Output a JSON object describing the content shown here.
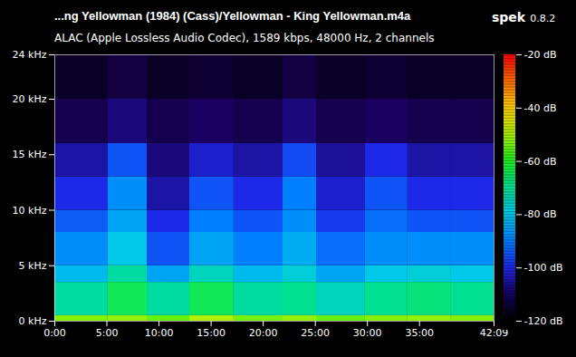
{
  "chart_data": {
    "type": "heatmap",
    "title": "...ng Yellowman (1984) (Cass)/Yellowman - King Yellowman.m4a",
    "subtitle": "ALAC (Apple Lossless Audio Codec), 1589 kbps, 48000 Hz, 2 channels",
    "annotations": [
      "spek",
      "0.8.2"
    ],
    "x": [
      0,
      307,
      532,
      777,
      1032,
      1314,
      1507,
      1788,
      2033,
      2279,
      2529
    ],
    "y": [
      0,
      0.5,
      3.5,
      5,
      8,
      10,
      13,
      16,
      20,
      24
    ],
    "values": [
      [
        -53,
        -72,
        -82,
        -88,
        -94,
        -100,
        -105,
        -112,
        -116
      ],
      [
        -52,
        -65,
        -72,
        -80,
        -85,
        -88,
        -95,
        -108,
        -113
      ],
      [
        -55,
        -72,
        -85,
        -95,
        -100,
        -105,
        -108,
        -112,
        -116
      ],
      [
        -50,
        -65,
        -75,
        -85,
        -90,
        -95,
        -102,
        -110,
        -115
      ],
      [
        -54,
        -72,
        -82,
        -90,
        -95,
        -100,
        -105,
        -112,
        -116
      ],
      [
        -52,
        -70,
        -78,
        -84,
        -88,
        -90,
        -96,
        -108,
        -113
      ],
      [
        -55,
        -75,
        -85,
        -92,
        -98,
        -102,
        -106,
        -112,
        -116
      ],
      [
        -53,
        -70,
        -80,
        -88,
        -92,
        -95,
        -100,
        -110,
        -115
      ],
      [
        -52,
        -68,
        -78,
        -88,
        -95,
        -100,
        -105,
        -112,
        -116
      ],
      [
        -53,
        -70,
        -80,
        -88,
        -95,
        -100,
        -105,
        -112,
        -116
      ]
    ],
    "xlim": [
      0,
      2529
    ],
    "xticks": [
      {
        "value": 0,
        "label": "0:00"
      },
      {
        "value": 300,
        "label": "5:00"
      },
      {
        "value": 600,
        "label": "10:00"
      },
      {
        "value": 900,
        "label": "15:00"
      },
      {
        "value": 1200,
        "label": "20:00"
      },
      {
        "value": 1500,
        "label": "25:00"
      },
      {
        "value": 1800,
        "label": "30:00"
      },
      {
        "value": 2100,
        "label": "35:00"
      },
      {
        "value": 2529,
        "label": "42:09"
      }
    ],
    "ylim": [
      0,
      24
    ],
    "yticks": [
      {
        "value": 0,
        "label": "0 kHz"
      },
      {
        "value": 5,
        "label": "5 kHz"
      },
      {
        "value": 10,
        "label": "10 kHz"
      },
      {
        "value": 15,
        "label": "15 kHz"
      },
      {
        "value": 20,
        "label": "20 kHz"
      },
      {
        "value": 24,
        "label": "24 kHz"
      }
    ],
    "colorbar": {
      "range": [
        -120,
        -20
      ],
      "ticks": [
        {
          "value": -20,
          "label": "-20 dB"
        },
        {
          "value": -40,
          "label": "-40 dB"
        },
        {
          "value": -60,
          "label": "-60 dB"
        },
        {
          "value": -80,
          "label": "-80 dB"
        },
        {
          "value": -100,
          "label": "-100 dB"
        },
        {
          "value": -120,
          "label": "-120 dB"
        }
      ]
    }
  }
}
